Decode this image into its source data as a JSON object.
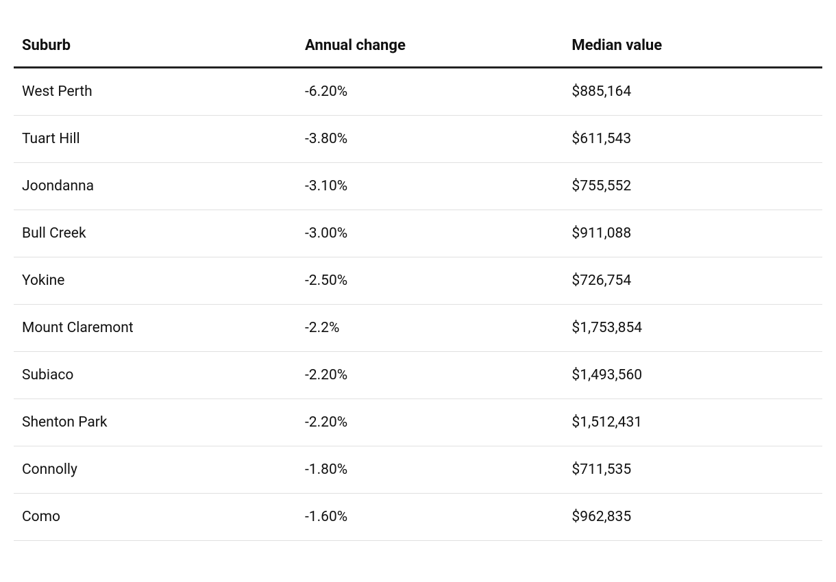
{
  "table": {
    "type": "table",
    "background_color": "#ffffff",
    "text_color": "#111111",
    "header_border_color": "#222222",
    "row_border_color": "#e0e0e0",
    "header_fontsize": 22,
    "header_fontweight": 700,
    "cell_fontsize": 21,
    "cell_fontweight": 400,
    "columns": [
      {
        "key": "suburb",
        "label": "Suburb",
        "width": "35%",
        "align": "left"
      },
      {
        "key": "annual_change",
        "label": "Annual change",
        "width": "33%",
        "align": "left"
      },
      {
        "key": "median_value",
        "label": "Median value",
        "width": "32%",
        "align": "left"
      }
    ],
    "rows": [
      {
        "suburb": "West Perth",
        "annual_change": "-6.20%",
        "median_value": "$885,164"
      },
      {
        "suburb": "Tuart Hill",
        "annual_change": "-3.80%",
        "median_value": "$611,543"
      },
      {
        "suburb": "Joondanna",
        "annual_change": "-3.10%",
        "median_value": "$755,552"
      },
      {
        "suburb": "Bull Creek",
        "annual_change": "-3.00%",
        "median_value": "$911,088"
      },
      {
        "suburb": "Yokine",
        "annual_change": "-2.50%",
        "median_value": "$726,754"
      },
      {
        "suburb": "Mount Claremont",
        "annual_change": "-2.2%",
        "median_value": "$1,753,854"
      },
      {
        "suburb": "Subiaco",
        "annual_change": "-2.20%",
        "median_value": "$1,493,560"
      },
      {
        "suburb": "Shenton Park",
        "annual_change": "-2.20%",
        "median_value": "$1,512,431"
      },
      {
        "suburb": "Connolly",
        "annual_change": "-1.80%",
        "median_value": "$711,535"
      },
      {
        "suburb": "Como",
        "annual_change": "-1.60%",
        "median_value": "$962,835"
      }
    ]
  }
}
